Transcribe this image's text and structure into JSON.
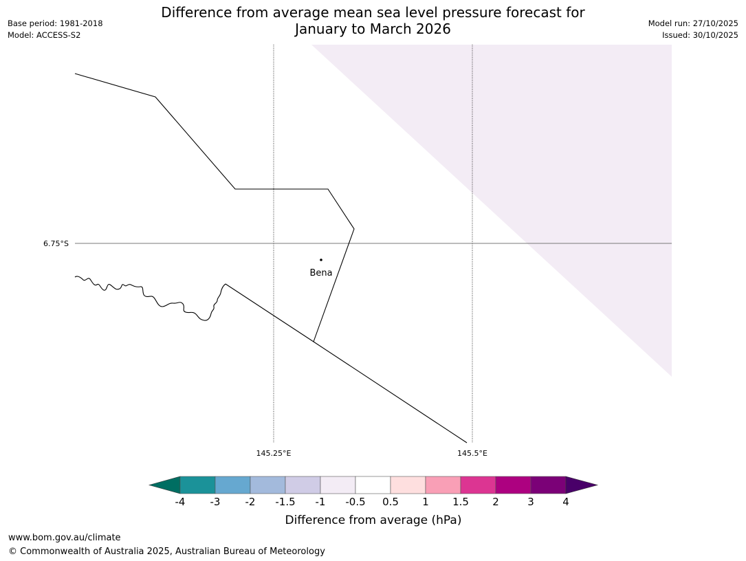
{
  "title_line1": "Difference from average mean sea level pressure forecast for",
  "title_line2": "January to March 2026",
  "base_period": "Base period: 1981-2018",
  "model": "Model: ACCESS-S2",
  "model_run": "Model run: 27/10/2025",
  "issued": "Issued: 30/10/2025",
  "map": {
    "lat_label": "6.75°S",
    "lon_labels": [
      "145.25°E",
      "145.5°E"
    ],
    "place_name": "Bena",
    "shading_color": "#f3ecf5"
  },
  "colorbar": {
    "label": "Difference from average (hPa)",
    "tick_labels": [
      "-4",
      "-3",
      "-2",
      "-1.5",
      "-1",
      "-0.5",
      "0.5",
      "1",
      "1.5",
      "2",
      "3",
      "4"
    ],
    "colors": [
      "#1b9299",
      "#66a8d0",
      "#a3badc",
      "#d0cce6",
      "#f3ecf5",
      "#ffffff",
      "#fedfdf",
      "#f99fb6",
      "#dc3592",
      "#ad0180",
      "#7b0177"
    ],
    "under_color": "#006e62",
    "over_color": "#490069"
  },
  "footer_url": "www.bom.gov.au/climate",
  "footer_copyright": "© Commonwealth of Australia 2025, Australian Bureau of Meteorology"
}
